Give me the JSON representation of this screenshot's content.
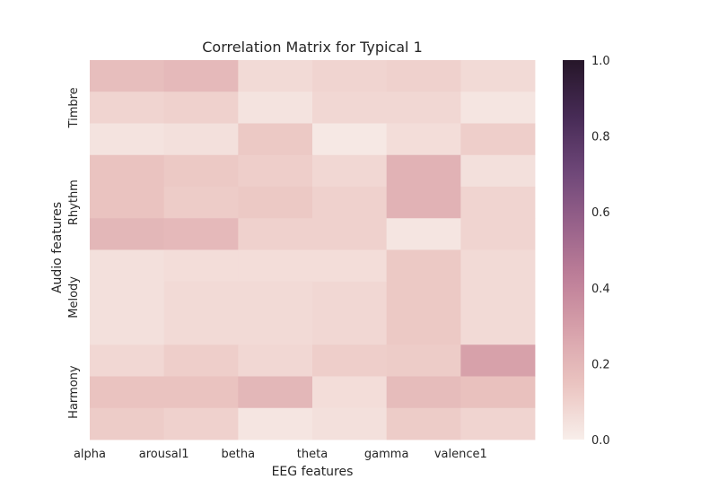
{
  "chart_data": {
    "type": "heatmap",
    "title": "Correlation Matrix for Typical 1",
    "xlabel": "EEG features",
    "ylabel": "Audio features",
    "x_tick_labels": [
      "alpha",
      "arousal1",
      "betha",
      "theta",
      "gamma",
      "valence1"
    ],
    "y_group_labels": [
      "Timbre",
      "Rhythm",
      "Melody",
      "Harmony"
    ],
    "n_cols": 6,
    "n_rows": 12,
    "values": [
      [
        0.17,
        0.19,
        0.07,
        0.09,
        0.1,
        0.07
      ],
      [
        0.09,
        0.1,
        0.04,
        0.08,
        0.08,
        0.03
      ],
      [
        0.04,
        0.05,
        0.13,
        0.02,
        0.06,
        0.11
      ],
      [
        0.15,
        0.13,
        0.11,
        0.08,
        0.22,
        0.05
      ],
      [
        0.15,
        0.12,
        0.13,
        0.1,
        0.22,
        0.09
      ],
      [
        0.2,
        0.19,
        0.1,
        0.1,
        0.03,
        0.09
      ],
      [
        0.05,
        0.06,
        0.06,
        0.06,
        0.13,
        0.07
      ],
      [
        0.05,
        0.07,
        0.07,
        0.08,
        0.13,
        0.07
      ],
      [
        0.05,
        0.07,
        0.07,
        0.08,
        0.13,
        0.07
      ],
      [
        0.08,
        0.11,
        0.08,
        0.11,
        0.12,
        0.29
      ],
      [
        0.15,
        0.15,
        0.2,
        0.06,
        0.18,
        0.16
      ],
      [
        0.12,
        0.1,
        0.03,
        0.05,
        0.12,
        0.09
      ]
    ],
    "zlim": [
      0.0,
      1.0
    ],
    "colorbar_ticks": [
      "0.0",
      "0.2",
      "0.4",
      "0.6",
      "0.8",
      "1.0"
    ],
    "colormap_hex": [
      "#f8eeea",
      "#ebc5c1",
      "#d8a2ab",
      "#be7e98",
      "#96618a",
      "#6c4577",
      "#452a54",
      "#261629"
    ],
    "grid": false
  }
}
